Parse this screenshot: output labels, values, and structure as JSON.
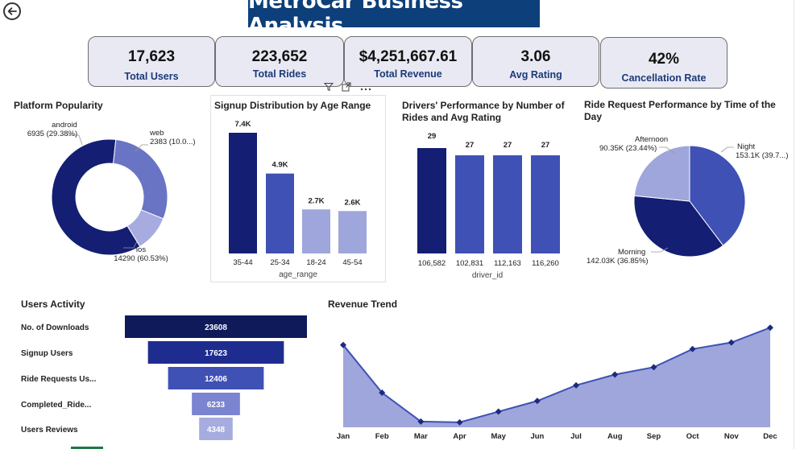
{
  "header": {
    "title": "MetroCar Business Analysis"
  },
  "kpis": [
    {
      "value": "17,623",
      "label": "Total Users"
    },
    {
      "value": "223,652",
      "label": "Total Rides"
    },
    {
      "value": "$4,251,667.61",
      "label": "Total Revenue"
    },
    {
      "value": "3.06",
      "label": "Avg Rating"
    },
    {
      "value": "42%",
      "label": "Cancellation Rate"
    }
  ],
  "icons": {
    "back": "back-arrow-icon",
    "filter": "filter-icon",
    "focus": "focus-mode-icon",
    "more": "more-options-icon"
  },
  "colors": {
    "navy": "#141e73",
    "blue": "#3f51b5",
    "light": "#9fa6db",
    "title_bg": "#0d3f7a"
  },
  "chart_data": [
    {
      "type": "pie",
      "title": "Platform Popularity",
      "categories": [
        "ios",
        "android",
        "web"
      ],
      "values": [
        14290,
        6935,
        2383
      ],
      "labels": [
        "14290 (60.53%)",
        "6935 (29.38%)",
        "2383 (10.0...)"
      ],
      "colors": [
        "#141e73",
        "#6a74c4",
        "#a6acdf"
      ]
    },
    {
      "type": "bar",
      "title": "Signup Distribution by Age Range",
      "xlabel": "age_range",
      "categories": [
        "35-44",
        "25-34",
        "18-24",
        "45-54"
      ],
      "values": [
        7400,
        4900,
        2700,
        2600
      ],
      "data_labels": [
        "7.4K",
        "4.9K",
        "2.7K",
        "2.6K"
      ],
      "colors": [
        "#141e73",
        "#3f51b5",
        "#9fa6db",
        "#9fa6db"
      ]
    },
    {
      "type": "bar",
      "title": "Drivers' Performance by Number of Rides and Avg Rating",
      "xlabel": "driver_id",
      "categories": [
        "106,582",
        "102,831",
        "112,163",
        "116,260"
      ],
      "values": [
        29,
        27,
        27,
        27
      ],
      "data_labels": [
        "29",
        "27",
        "27",
        "27"
      ],
      "colors": [
        "#141e73",
        "#3f51b5",
        "#3f51b5",
        "#3f51b5"
      ]
    },
    {
      "type": "pie",
      "title": "Ride Request Performance by Time of the Day",
      "categories": [
        "Night",
        "Morning",
        "Afternoon"
      ],
      "values": [
        153.1,
        142.03,
        90.35
      ],
      "labels": [
        "153.1K (39.7...)",
        "142.03K (36.85%)",
        "90.35K (23.44%)"
      ],
      "colors": [
        "#3f51b5",
        "#141e73",
        "#9fa6db"
      ]
    },
    {
      "type": "bar",
      "title": "Users Activity",
      "categories": [
        "No. of Downloads",
        "Signup Users",
        "Ride Requests Us...",
        "Completed_Ride...",
        "Users Reviews"
      ],
      "values": [
        23608,
        17623,
        12406,
        6233,
        4348
      ],
      "colors": [
        "#0f1a5a",
        "#1f2c8f",
        "#3f51b5",
        "#7b84d0",
        "#a6acdf"
      ]
    },
    {
      "type": "area",
      "title": "Revenue Trend",
      "categories": [
        "Jan",
        "Feb",
        "Mar",
        "Apr",
        "May",
        "Jun",
        "Jul",
        "Aug",
        "Sep",
        "Oct",
        "Nov",
        "Dec"
      ],
      "values": [
        100,
        42,
        7,
        6,
        19,
        32,
        51,
        64,
        73,
        95,
        103,
        121
      ],
      "ylim": [
        0,
        130
      ]
    }
  ]
}
